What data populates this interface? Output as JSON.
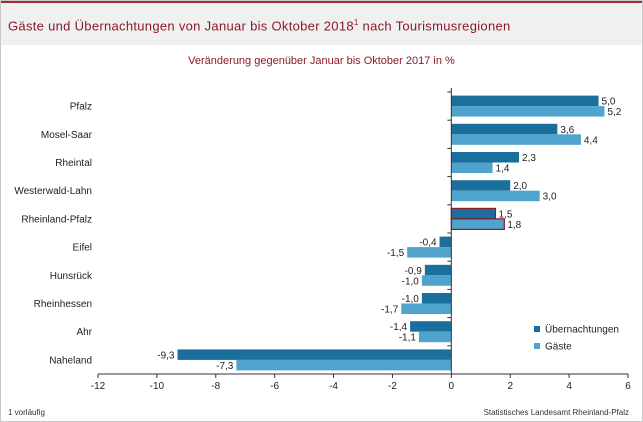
{
  "header": {
    "title": "Gäste und Übernachtungen von Januar bis Oktober 2018",
    "title_footnote_mark": "1",
    "title_suffix": " nach Tourismusregionen"
  },
  "footnote": "1 vorläufig",
  "source": "Statistisches Landesamt Rheinland-Pfalz",
  "colors": {
    "uebernachtungen": "#1b6f9d",
    "gaeste": "#4fa3cc",
    "highlight_border": "#8b1a2b",
    "title": "#8b1a2b"
  },
  "chart_data": {
    "type": "bar",
    "orientation": "horizontal",
    "title": "Veränderung gegenüber Januar bis Oktober 2017 in %",
    "categories": [
      "Pfalz",
      "Mosel-Saar",
      "Rheintal",
      "Westerwald-Lahn",
      "Rheinland-Pfalz",
      "Eifel",
      "Hunsrück",
      "Rheinhessen",
      "Ahr",
      "Naheland"
    ],
    "series": [
      {
        "name": "Übernachtungen",
        "values": [
          5.0,
          3.6,
          2.3,
          2.0,
          1.5,
          -0.4,
          -0.9,
          -1.0,
          -1.4,
          -9.3
        ],
        "labels": [
          "5,0",
          "3,6",
          "2,3",
          "2,0",
          "1,5",
          "-0,4",
          "-0,9",
          "-1,0",
          "-1,4",
          "-9,3"
        ]
      },
      {
        "name": "Gäste",
        "values": [
          5.2,
          4.4,
          1.4,
          3.0,
          1.8,
          -1.5,
          -1.0,
          -1.7,
          -1.1,
          -7.3
        ],
        "labels": [
          "5,2",
          "4,4",
          "1,4",
          "3,0",
          "1,8",
          "-1,5",
          "-1,0",
          "-1,7",
          "-1,1",
          "-7,3"
        ]
      }
    ],
    "highlight_category": "Rheinland-Pfalz",
    "xlim": [
      -12,
      6
    ],
    "x_ticks": [
      -12,
      -10,
      -8,
      -6,
      -4,
      -2,
      0,
      2,
      4,
      6
    ],
    "legend_position": "bottom-right",
    "grid": false
  }
}
